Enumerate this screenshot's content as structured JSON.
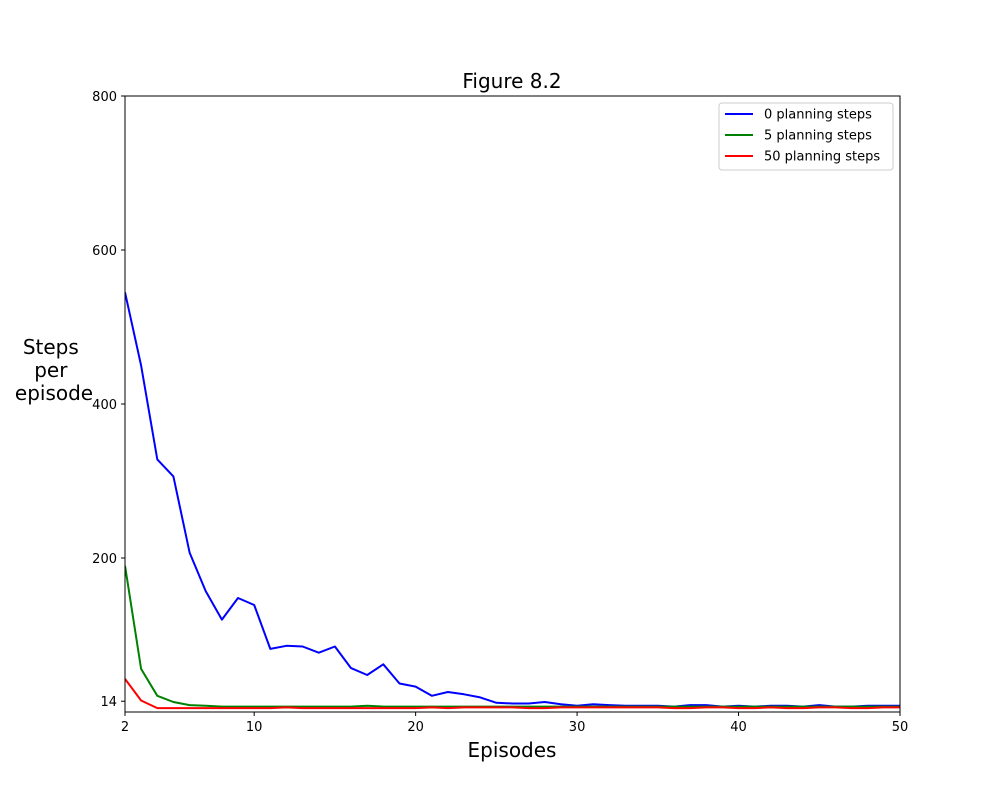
{
  "chart_data": {
    "type": "line",
    "title": "Figure 8.2",
    "xlabel": "Episodes",
    "ylabel": [
      "Steps",
      "per",
      "episode"
    ],
    "xlim": [
      2,
      50
    ],
    "ylim": [
      0,
      800
    ],
    "xticks": [
      2,
      10,
      20,
      30,
      40,
      50
    ],
    "yticks": [
      14,
      200,
      400,
      600,
      800
    ],
    "grid": false,
    "legend_position": "top-right",
    "x": [
      2,
      3,
      4,
      5,
      6,
      7,
      8,
      9,
      10,
      11,
      12,
      13,
      14,
      15,
      16,
      17,
      18,
      19,
      20,
      21,
      22,
      23,
      24,
      25,
      26,
      27,
      28,
      29,
      30,
      31,
      32,
      33,
      34,
      35,
      36,
      37,
      38,
      39,
      40,
      41,
      42,
      43,
      44,
      45,
      46,
      47,
      48,
      49,
      50
    ],
    "series": [
      {
        "name": "0 planning steps",
        "color": "#0000ff",
        "values": [
          545,
          450,
          328,
          306,
          207,
          157,
          120,
          148,
          139,
          82,
          86,
          85,
          77,
          85,
          57,
          48,
          62,
          37,
          33,
          21,
          26,
          23,
          19,
          12,
          11,
          11,
          13,
          10,
          8,
          10,
          9,
          8,
          8,
          8,
          7,
          9,
          9,
          7,
          8,
          7,
          8,
          8,
          7,
          9,
          7,
          7,
          8,
          8,
          8
        ]
      },
      {
        "name": "5 planning steps",
        "color": "#008000",
        "values": [
          190,
          56,
          21,
          13,
          9,
          8,
          7,
          7,
          7,
          7,
          7,
          7,
          7,
          7,
          7,
          8,
          7,
          7,
          7,
          7,
          7,
          7,
          7,
          7,
          7,
          7,
          7,
          7,
          7,
          7,
          7,
          7,
          7,
          7,
          7,
          7,
          7,
          7,
          7,
          7,
          7,
          7,
          7,
          7,
          7,
          7,
          7,
          7,
          7
        ]
      },
      {
        "name": "50 planning steps",
        "color": "#ff0000",
        "values": [
          43,
          15,
          5,
          5,
          5,
          5,
          5,
          5,
          5,
          5,
          6,
          5,
          5,
          5,
          5,
          5,
          5,
          5,
          5,
          6,
          5,
          6,
          6,
          6,
          6,
          5,
          5,
          6,
          6,
          6,
          6,
          6,
          6,
          6,
          5,
          5,
          6,
          6,
          5,
          5,
          6,
          5,
          5,
          6,
          6,
          5,
          5,
          6,
          6
        ]
      }
    ]
  }
}
